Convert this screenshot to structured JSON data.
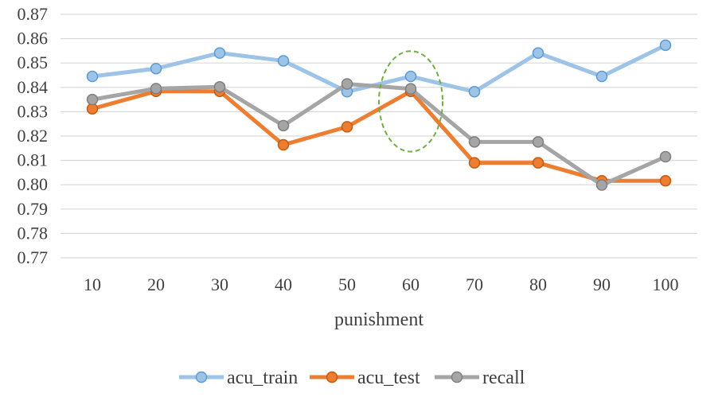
{
  "chart_data": {
    "type": "line",
    "title": "",
    "xlabel": "punishment",
    "ylabel": "",
    "categories": [
      "10",
      "20",
      "30",
      "40",
      "50",
      "60",
      "70",
      "80",
      "90",
      "100"
    ],
    "ylim": [
      0.77,
      0.87
    ],
    "yticks": [
      "0.77",
      "0.78",
      "0.79",
      "0.80",
      "0.81",
      "0.82",
      "0.83",
      "0.84",
      "0.85",
      "0.86",
      "0.87"
    ],
    "grid": true,
    "legend": "bottom",
    "series": [
      {
        "name": "acu_train",
        "color": "#9DC3E6",
        "marker_fill": "#9DC3E6",
        "marker_stroke": "#5B9BD5",
        "values": [
          0.8445,
          0.8477,
          0.8541,
          0.8509,
          0.8382,
          0.8445,
          0.8382,
          0.8541,
          0.8445,
          0.8573
        ]
      },
      {
        "name": "acu_test",
        "color": "#ED7D31",
        "marker_fill": "#ED7D31",
        "marker_stroke": "#C55A11",
        "values": [
          0.8312,
          0.8384,
          0.8384,
          0.8164,
          0.8238,
          0.8384,
          0.809,
          0.809,
          0.8016,
          0.8016
        ]
      },
      {
        "name": "recall",
        "color": "#A5A5A5",
        "marker_fill": "#A5A5A5",
        "marker_stroke": "#7F7F7F",
        "values": [
          0.835,
          0.8395,
          0.8402,
          0.8243,
          0.8414,
          0.8394,
          0.8176,
          0.8176,
          0.7999,
          0.8115
        ]
      }
    ],
    "highlight": {
      "type": "dashed-ellipse",
      "category": "60",
      "y_range": [
        0.8136,
        0.8549
      ],
      "color": "#70AD47"
    }
  }
}
